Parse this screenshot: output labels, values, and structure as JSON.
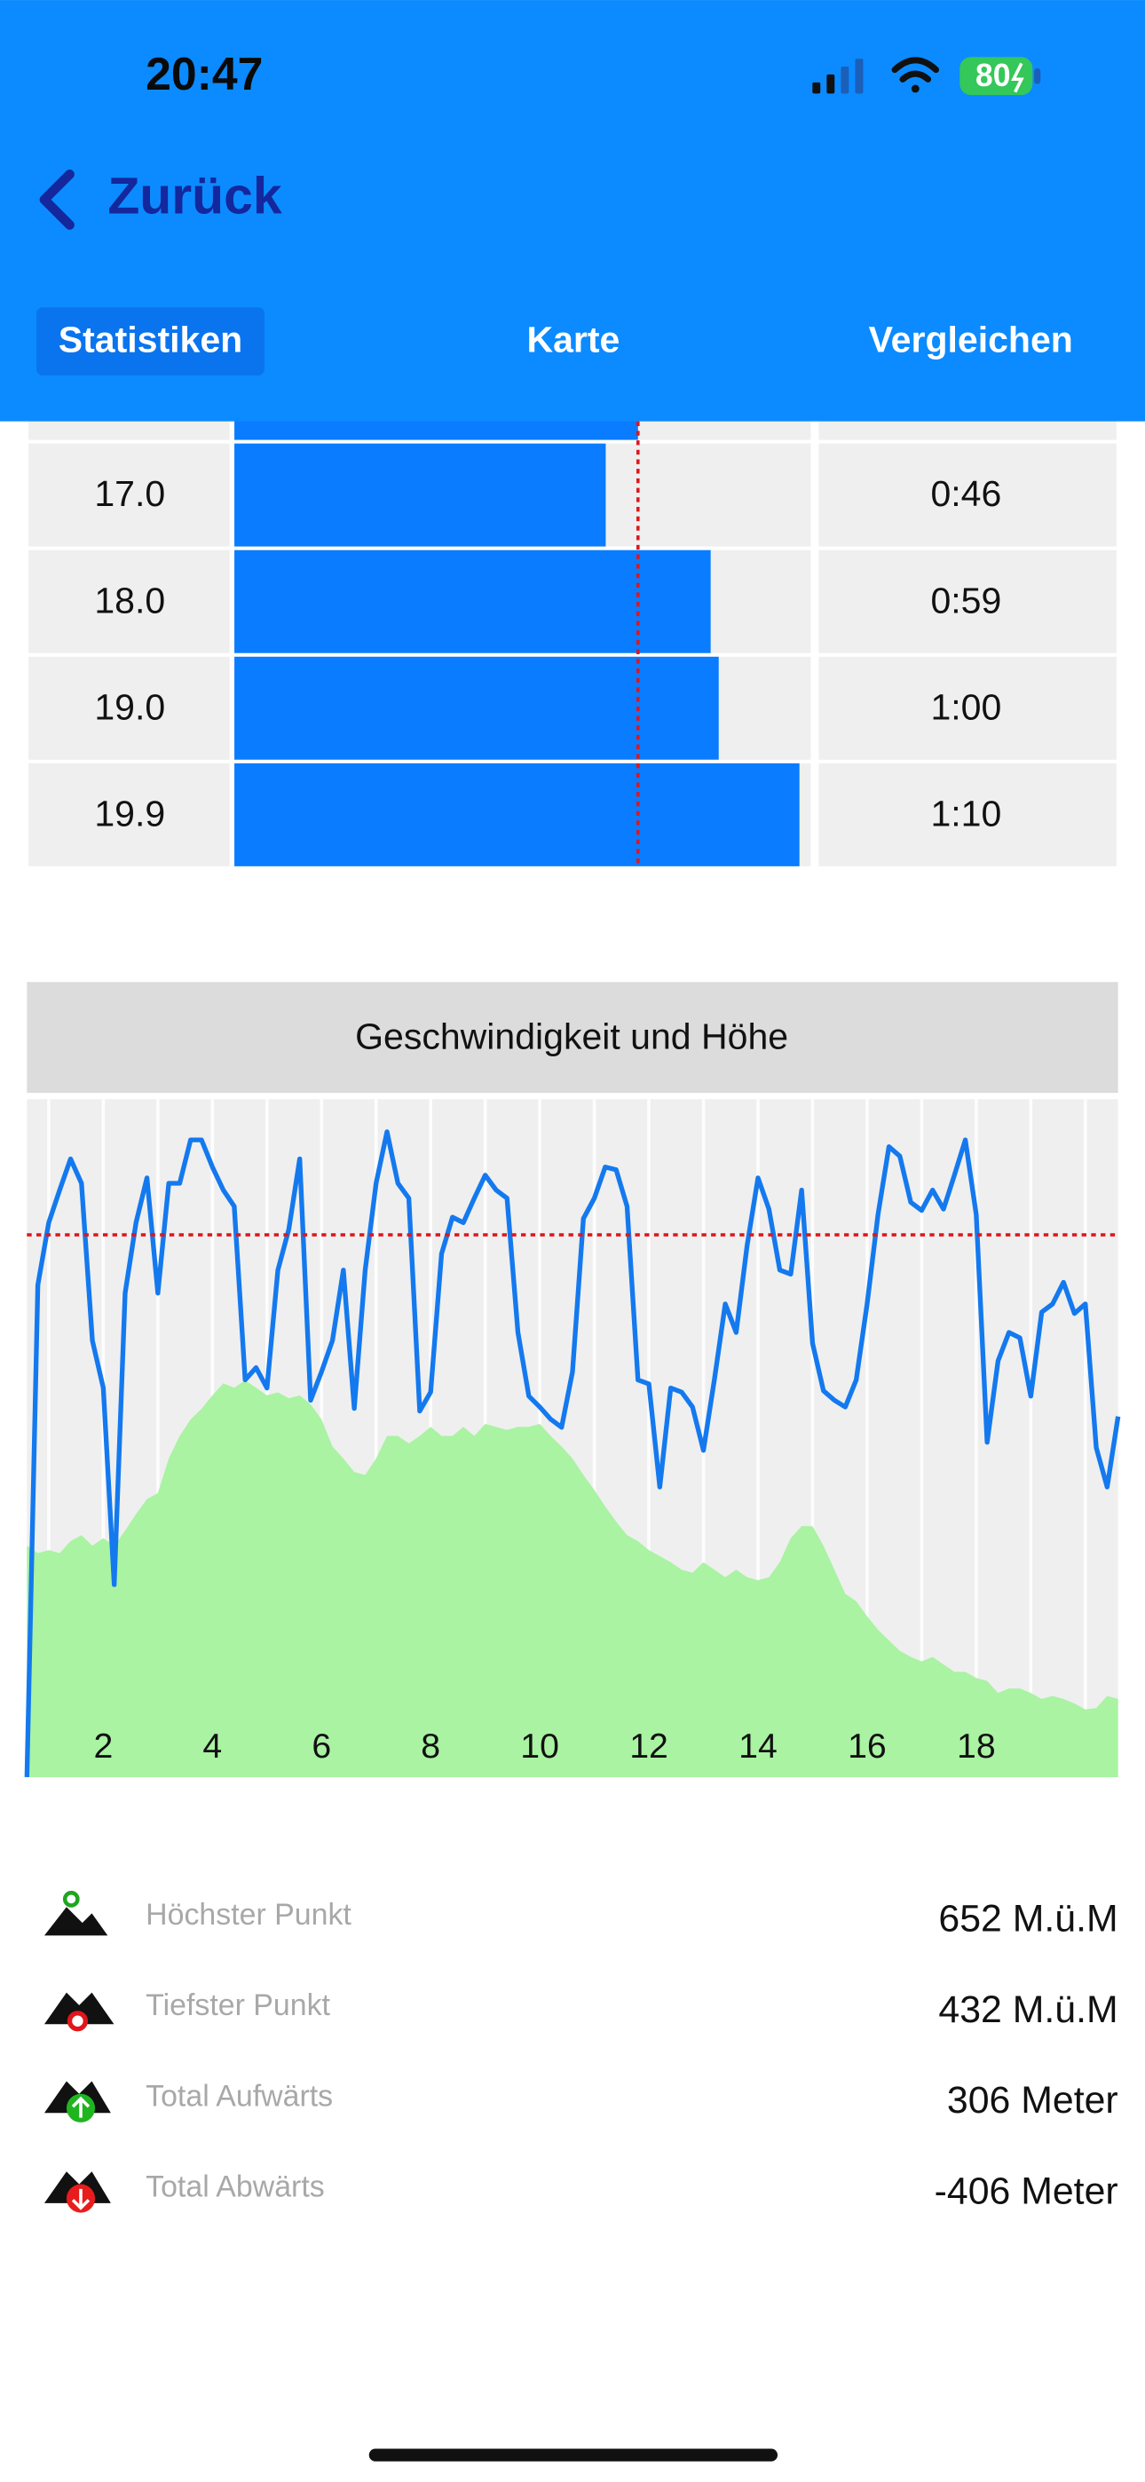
{
  "status": {
    "time": "20:47",
    "battery": "80"
  },
  "nav": {
    "back": "Zurück"
  },
  "tabs": [
    "Statistiken",
    "Karte",
    "Vergleichen"
  ],
  "splits": {
    "type": "bar",
    "categories": [
      null,
      "17.0",
      "18.0",
      "19.0",
      "19.9"
    ],
    "values": [
      50,
      46,
      59,
      60,
      70
    ],
    "value_labels": [
      null,
      "0:46",
      "0:59",
      "1:00",
      "1:10"
    ],
    "average": 50,
    "xlim": [
      0,
      72
    ],
    "color": "#0a7cff",
    "average_color": "#e0161b"
  },
  "profile": {
    "type": "line",
    "title": "Geschwindigkeit und Höhe",
    "x": [
      0.6,
      0.8,
      1.0,
      1.2,
      1.4,
      1.6,
      1.8,
      2.0,
      2.2,
      2.4,
      2.6,
      2.8,
      3.0,
      3.2,
      3.4,
      3.6,
      3.8,
      4.0,
      4.2,
      4.4,
      4.6,
      4.8,
      5.0,
      5.2,
      5.4,
      5.6,
      5.8,
      6.0,
      6.2,
      6.4,
      6.6,
      6.8,
      7.0,
      7.2,
      7.4,
      7.6,
      7.8,
      8.0,
      8.2,
      8.4,
      8.6,
      8.8,
      9.0,
      9.2,
      9.4,
      9.6,
      9.8,
      10.0,
      10.2,
      10.4,
      10.6,
      10.8,
      11.0,
      11.2,
      11.4,
      11.6,
      11.8,
      12.0,
      12.2,
      12.4,
      12.6,
      12.8,
      13.0,
      13.2,
      13.4,
      13.6,
      13.8,
      14.0,
      14.2,
      14.4,
      14.6,
      14.8,
      15.0,
      15.2,
      15.4,
      15.6,
      15.8,
      16.0,
      16.2,
      16.4,
      16.6,
      16.8,
      17.0,
      17.2,
      17.4,
      17.6,
      17.8,
      18.0,
      18.2,
      18.4,
      18.6,
      18.8,
      19.0,
      19.2,
      19.4,
      19.6,
      19.8,
      20.0,
      20.2,
      20.4,
      20.6
    ],
    "xlim": [
      0.6,
      20.6
    ],
    "xticks": [
      2,
      4,
      6,
      8,
      10,
      12,
      14,
      16,
      18
    ],
    "grid": true,
    "ylim": [
      0,
      50
    ],
    "y2lim": [
      388,
      839
    ],
    "series": [
      {
        "color": "#1479ee",
        "average": 40,
        "average_color": "#e0161b",
        "values": [
          0,
          36.3,
          40.9,
          43.3,
          45.6,
          43.8,
          32.2,
          28.7,
          14.2,
          35.7,
          40.9,
          44.2,
          35.7,
          43.8,
          43.8,
          47.0,
          47.0,
          45.0,
          43.3,
          42.1,
          29.3,
          30.2,
          28.7,
          37.4,
          40.4,
          45.6,
          27.8,
          29.9,
          32.2,
          37.4,
          27.2,
          37.4,
          43.8,
          47.6,
          43.8,
          42.7,
          27.0,
          28.4,
          38.6,
          41.3,
          40.9,
          42.7,
          44.4,
          43.3,
          42.7,
          32.8,
          28.1,
          27.3,
          26.4,
          25.8,
          29.9,
          41.2,
          42.7,
          45.0,
          44.8,
          42.1,
          29.3,
          29.0,
          21.4,
          28.7,
          28.4,
          27.3,
          24.1,
          29.3,
          34.9,
          32.8,
          39.2,
          44.2,
          41.9,
          37.4,
          37.1,
          43.3,
          32.0,
          28.5,
          27.8,
          27.3,
          29.3,
          34.9,
          41.5,
          46.5,
          45.8,
          42.4,
          41.8,
          43.3,
          41.9,
          44.4,
          47.0,
          41.5,
          24.7,
          30.7,
          32.8,
          32.4,
          28.1,
          34.3,
          34.9,
          36.5,
          34.2,
          34.9,
          24.3,
          21.4,
          26.6
        ]
      },
      {
        "color": "#a9f3a2",
        "axis": "y2",
        "fill": true,
        "values": [
          542,
          537,
          539,
          537,
          545,
          549,
          542,
          547,
          542,
          552,
          563,
          573,
          577,
          600,
          615,
          626,
          633,
          642,
          650,
          647,
          652,
          647,
          642,
          644,
          640,
          642,
          636,
          626,
          608,
          600,
          591,
          589,
          600,
          615,
          615,
          610,
          615,
          621,
          615,
          615,
          621,
          615,
          623,
          621,
          619,
          621,
          621,
          623,
          615,
          608,
          600,
          589,
          579,
          568,
          558,
          549,
          545,
          539,
          535,
          531,
          526,
          524,
          531,
          526,
          521,
          526,
          521,
          519,
          521,
          531,
          547,
          555,
          555,
          542,
          526,
          510,
          505,
          495,
          486,
          479,
          472,
          468,
          465,
          468,
          463,
          458,
          458,
          454,
          452,
          444,
          447,
          447,
          444,
          440,
          442,
          440,
          437,
          433,
          434,
          442,
          440
        ]
      }
    ]
  },
  "elevation_stats": [
    {
      "label": "Höchster Punkt",
      "value": "652 M.ü.M"
    },
    {
      "label": "Tiefster Punkt",
      "value": "432 M.ü.M"
    },
    {
      "label": "Total Aufwärts",
      "value": "306 Meter"
    },
    {
      "label": "Total Abwärts",
      "value": "-406 Meter"
    }
  ]
}
